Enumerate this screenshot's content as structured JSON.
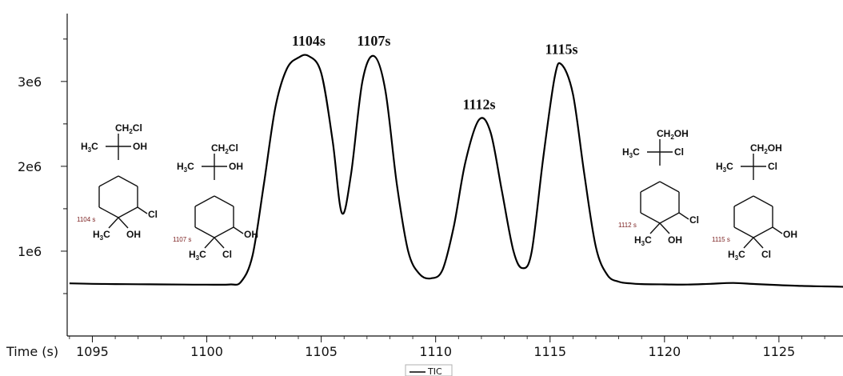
{
  "chart_data": {
    "type": "line",
    "xlabel": "Time (s)",
    "x_ticks": [
      1095,
      1100,
      1105,
      1110,
      1115,
      1120,
      1125
    ],
    "y_ticks": [
      {
        "value": 1000000,
        "label": "1e6"
      },
      {
        "value": 2000000,
        "label": "2e6"
      },
      {
        "value": 3000000,
        "label": "3e6"
      }
    ],
    "xlim": [
      1093.9,
      1127.8
    ],
    "ylim": [
      0,
      3800000
    ],
    "series": [
      {
        "name": "TIC",
        "color": "#000000",
        "x": [
          1094,
          1095,
          1096,
          1097,
          1098,
          1099,
          1100,
          1101,
          1101.5,
          1102,
          1102.5,
          1103,
          1103.5,
          1104,
          1104.45,
          1105,
          1105.5,
          1105.9,
          1106.3,
          1106.8,
          1107.3,
          1107.8,
          1108.3,
          1108.8,
          1109.3,
          1109.8,
          1110.3,
          1110.8,
          1111.3,
          1111.9,
          1112.4,
          1112.9,
          1113.4,
          1113.8,
          1114.2,
          1114.7,
          1115.2,
          1115.5,
          1116,
          1116.5,
          1117,
          1117.5,
          1118,
          1118.5,
          1119,
          1120,
          1121,
          1122,
          1123,
          1124,
          1125,
          1126,
          1127,
          1127.8
        ],
        "y": [
          620000,
          615000,
          612000,
          610000,
          608000,
          606000,
          605000,
          607000,
          640000,
          950000,
          1800000,
          2700000,
          3150000,
          3280000,
          3300000,
          3100000,
          2300000,
          1450000,
          1900000,
          3000000,
          3300000,
          2900000,
          1800000,
          1000000,
          730000,
          680000,
          780000,
          1300000,
          2050000,
          2550000,
          2400000,
          1700000,
          1000000,
          800000,
          1000000,
          2100000,
          3050000,
          3200000,
          2850000,
          1900000,
          1050000,
          720000,
          640000,
          620000,
          612000,
          608000,
          606000,
          615000,
          625000,
          612000,
          600000,
          590000,
          585000,
          580000
        ]
      }
    ],
    "peak_labels": [
      {
        "text": "1104s",
        "x": 1104.45,
        "y": 3300000
      },
      {
        "text": "1107s",
        "x": 1107.3,
        "y": 3300000
      },
      {
        "text": "1112s",
        "x": 1111.9,
        "y": 2550000
      },
      {
        "text": "1115s",
        "x": 1115.5,
        "y": 3200000
      }
    ],
    "legend": {
      "entries": [
        "TIC"
      ],
      "placement": "bottom-center"
    },
    "grid": false
  },
  "structures": [
    {
      "id": "s1",
      "time_tag": "1104 s",
      "top_substituent": "CH2Cl",
      "side_left": "H3C",
      "side_right": "OH",
      "ring_right": "Cl",
      "bottom_left": "H3C",
      "bottom_right": "OH"
    },
    {
      "id": "s2",
      "time_tag": "1107 s",
      "top_substituent": "CH2Cl",
      "side_left": "H3C",
      "side_right": "OH",
      "ring_right": "OH",
      "bottom_left": "H3C",
      "bottom_right": "Cl"
    },
    {
      "id": "s3",
      "time_tag": "1112 s",
      "top_substituent": "CH2OH",
      "side_left": "H3C",
      "side_right": "Cl",
      "ring_right": "Cl",
      "bottom_left": "H3C",
      "bottom_right": "OH"
    },
    {
      "id": "s4",
      "time_tag": "1115 s",
      "top_substituent": "CH2OH",
      "side_left": "H3C",
      "side_right": "Cl",
      "ring_right": "OH",
      "bottom_left": "H3C",
      "bottom_right": "Cl"
    }
  ]
}
